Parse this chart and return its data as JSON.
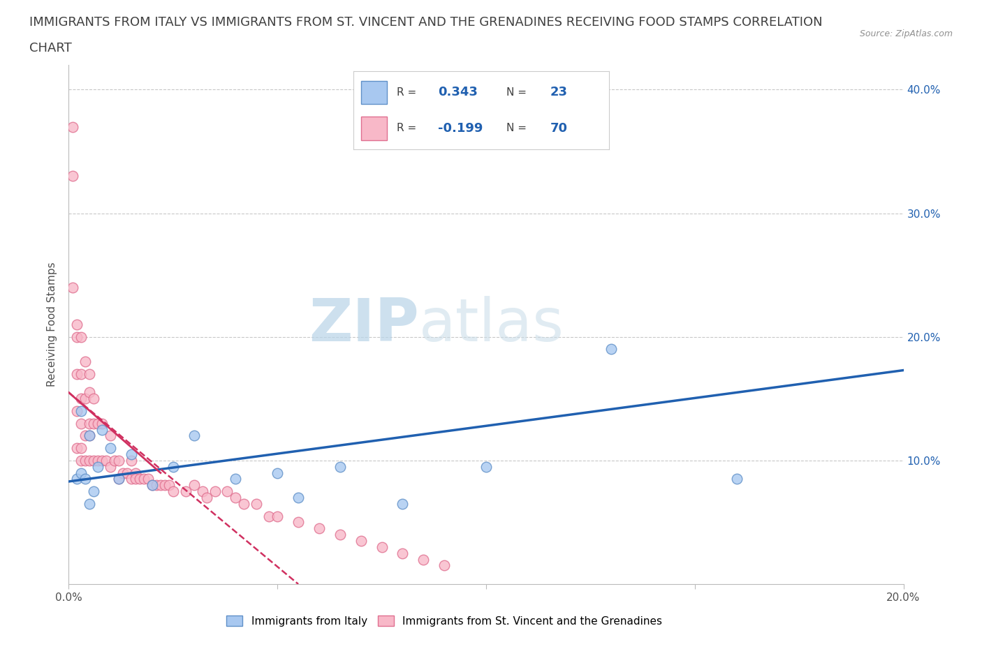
{
  "title_line1": "IMMIGRANTS FROM ITALY VS IMMIGRANTS FROM ST. VINCENT AND THE GRENADINES RECEIVING FOOD STAMPS CORRELATION",
  "title_line2": "CHART",
  "source": "Source: ZipAtlas.com",
  "ylabel": "Receiving Food Stamps",
  "xlim": [
    0.0,
    0.2
  ],
  "ylim": [
    0.0,
    0.42
  ],
  "xticks": [
    0.0,
    0.05,
    0.1,
    0.15,
    0.2
  ],
  "yticks": [
    0.0,
    0.1,
    0.2,
    0.3,
    0.4
  ],
  "xtick_labels": [
    "0.0%",
    "",
    "",
    "",
    "20.0%"
  ],
  "ytick_labels": [
    "",
    "",
    "",
    "",
    ""
  ],
  "right_ytick_labels": [
    "10.0%",
    "20.0%",
    "30.0%",
    "40.0%"
  ],
  "grid_color": "#c8c8c8",
  "watermark_color": "#d0e4f0",
  "italy_color": "#a8c8f0",
  "italy_edge": "#6090c8",
  "svg_color": "#f8b8c8",
  "svg_edge": "#e07090",
  "italy_R": 0.343,
  "italy_N": 23,
  "svg_R": -0.199,
  "svg_N": 70,
  "italy_trendline_color": "#2060b0",
  "svg_trendline_color": "#d03060",
  "italy_scatter_x": [
    0.002,
    0.003,
    0.003,
    0.004,
    0.005,
    0.005,
    0.006,
    0.007,
    0.008,
    0.01,
    0.012,
    0.015,
    0.02,
    0.025,
    0.03,
    0.04,
    0.05,
    0.055,
    0.065,
    0.08,
    0.1,
    0.13,
    0.16
  ],
  "italy_scatter_y": [
    0.085,
    0.09,
    0.14,
    0.085,
    0.065,
    0.12,
    0.075,
    0.095,
    0.125,
    0.11,
    0.085,
    0.105,
    0.08,
    0.095,
    0.12,
    0.085,
    0.09,
    0.07,
    0.095,
    0.065,
    0.095,
    0.19,
    0.085
  ],
  "svg_scatter_x": [
    0.001,
    0.001,
    0.001,
    0.002,
    0.002,
    0.002,
    0.002,
    0.002,
    0.003,
    0.003,
    0.003,
    0.003,
    0.003,
    0.003,
    0.004,
    0.004,
    0.004,
    0.004,
    0.005,
    0.005,
    0.005,
    0.005,
    0.005,
    0.006,
    0.006,
    0.006,
    0.007,
    0.007,
    0.008,
    0.008,
    0.009,
    0.01,
    0.01,
    0.011,
    0.012,
    0.012,
    0.013,
    0.014,
    0.015,
    0.015,
    0.016,
    0.016,
    0.017,
    0.018,
    0.019,
    0.02,
    0.021,
    0.022,
    0.023,
    0.024,
    0.025,
    0.028,
    0.03,
    0.032,
    0.033,
    0.035,
    0.038,
    0.04,
    0.042,
    0.045,
    0.048,
    0.05,
    0.055,
    0.06,
    0.065,
    0.07,
    0.075,
    0.08,
    0.085,
    0.09
  ],
  "svg_scatter_y": [
    0.37,
    0.33,
    0.24,
    0.21,
    0.2,
    0.17,
    0.14,
    0.11,
    0.2,
    0.17,
    0.15,
    0.13,
    0.11,
    0.1,
    0.18,
    0.15,
    0.12,
    0.1,
    0.17,
    0.155,
    0.13,
    0.12,
    0.1,
    0.15,
    0.13,
    0.1,
    0.13,
    0.1,
    0.13,
    0.1,
    0.1,
    0.12,
    0.095,
    0.1,
    0.1,
    0.085,
    0.09,
    0.09,
    0.1,
    0.085,
    0.09,
    0.085,
    0.085,
    0.085,
    0.085,
    0.08,
    0.08,
    0.08,
    0.08,
    0.08,
    0.075,
    0.075,
    0.08,
    0.075,
    0.07,
    0.075,
    0.075,
    0.07,
    0.065,
    0.065,
    0.055,
    0.055,
    0.05,
    0.045,
    0.04,
    0.035,
    0.03,
    0.025,
    0.02,
    0.015
  ],
  "italy_trend_x0": 0.0,
  "italy_trend_y0": 0.083,
  "italy_trend_x1": 0.2,
  "italy_trend_y1": 0.173,
  "svg_trend_x0": 0.0,
  "svg_trend_y0": 0.155,
  "svg_trend_x1": 0.055,
  "svg_trend_y1": 0.0,
  "legend_label_italy": "Immigrants from Italy",
  "legend_label_svg": "Immigrants from St. Vincent and the Grenadines",
  "title_color": "#404040",
  "title_fontsize": 13,
  "axis_label_color": "#505050",
  "tick_label_color_left": "#505050",
  "tick_label_color_right": "#2060b0",
  "tick_fontsize": 11,
  "right_color": "#2060b0"
}
